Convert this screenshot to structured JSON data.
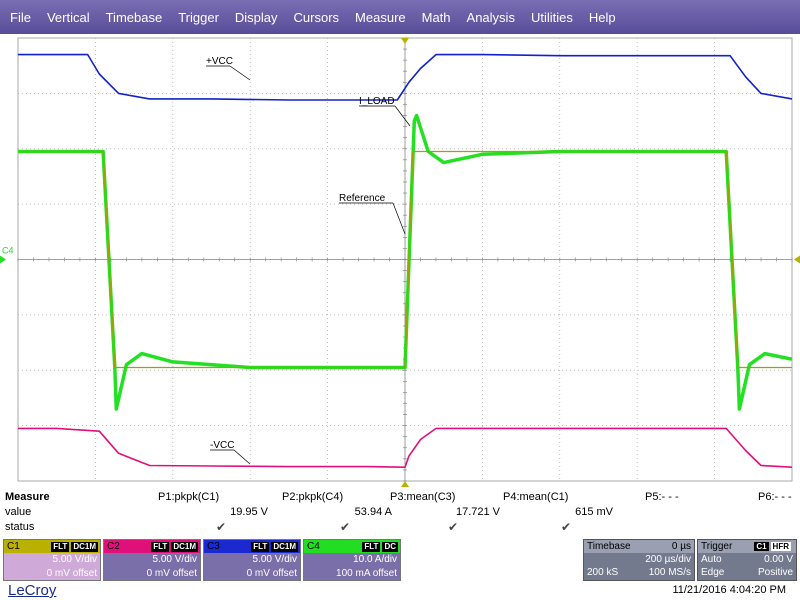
{
  "menu": [
    "File",
    "Vertical",
    "Timebase",
    "Trigger",
    "Display",
    "Cursors",
    "Measure",
    "Math",
    "Analysis",
    "Utilities",
    "Help"
  ],
  "colors": {
    "c1": "#a0a000",
    "c2": "#e0107a",
    "c3": "#1222c8",
    "c4": "#22e022",
    "grid": "#aaaaaa",
    "menu": "#6a60a8"
  },
  "traces": {
    "vcc_pos": {
      "label": "+VCC",
      "x": [
        0,
        0.05,
        0.09,
        0.105,
        0.13,
        0.17,
        0.25,
        0.35,
        0.45,
        0.49,
        0.505,
        0.52,
        0.54,
        0.6,
        0.7,
        0.8,
        0.9,
        0.92,
        0.94,
        0.96,
        1.0
      ],
      "y": [
        3.7,
        3.7,
        3.7,
        3.35,
        3.0,
        2.9,
        2.9,
        2.88,
        2.88,
        2.88,
        3.2,
        3.45,
        3.7,
        3.7,
        3.68,
        3.68,
        3.68,
        3.68,
        3.3,
        3.0,
        2.9
      ]
    },
    "vcc_neg": {
      "label": "-VCC",
      "x": [
        0,
        0.05,
        0.105,
        0.13,
        0.17,
        0.25,
        0.35,
        0.45,
        0.5,
        0.505,
        0.52,
        0.54,
        0.6,
        0.7,
        0.8,
        0.9,
        0.915,
        0.94,
        0.96,
        1.0
      ],
      "y": [
        -3.05,
        -3.05,
        -3.1,
        -3.5,
        -3.72,
        -3.73,
        -3.74,
        -3.74,
        -3.75,
        -3.55,
        -3.25,
        -3.05,
        -3.05,
        -3.05,
        -3.05,
        -3.05,
        -3.05,
        -3.45,
        -3.72,
        -3.75
      ]
    },
    "reference": {
      "label": "Reference",
      "x": [
        0,
        0.11,
        0.125,
        0.5,
        0.51,
        0.915,
        0.93,
        1.0
      ],
      "y": [
        1.95,
        1.95,
        -1.95,
        -1.95,
        1.95,
        1.95,
        -1.95,
        -1.95
      ]
    },
    "i_load": {
      "label": "I_LOAD",
      "x": [
        0,
        0.11,
        0.125,
        0.127,
        0.14,
        0.16,
        0.2,
        0.3,
        0.4,
        0.5,
        0.512,
        0.515,
        0.53,
        0.55,
        0.6,
        0.7,
        0.8,
        0.915,
        0.93,
        0.932,
        0.945,
        0.965,
        1.0
      ],
      "y": [
        1.95,
        1.95,
        -1.95,
        -2.7,
        -1.9,
        -1.7,
        -1.85,
        -1.95,
        -1.95,
        -1.95,
        2.5,
        2.6,
        1.95,
        1.75,
        1.9,
        1.95,
        1.95,
        1.95,
        -1.95,
        -2.7,
        -1.9,
        -1.7,
        -1.8
      ]
    }
  },
  "channel_marker": "C4",
  "measure": {
    "row_labels": [
      "Measure",
      "value",
      "status"
    ],
    "params": [
      {
        "name": "P1:pkpk(C1)",
        "value": "19.95 V",
        "status": "✔"
      },
      {
        "name": "P2:pkpk(C4)",
        "value": "53.94 A",
        "status": "✔"
      },
      {
        "name": "P3:mean(C3)",
        "value": "17.721 V",
        "status": "✔"
      },
      {
        "name": "P4:mean(C1)",
        "value": "615 mV",
        "status": "✔"
      },
      {
        "name": "P5:- - -",
        "value": "",
        "status": ""
      },
      {
        "name": "P6:- - -",
        "value": "",
        "status": ""
      }
    ]
  },
  "channels": [
    {
      "name": "C1",
      "tags": [
        "FLT",
        "DC1M"
      ],
      "scale": "5.00 V/div",
      "offset": "0 mV offset",
      "head": "#b9b000",
      "body": "#cfa9d8"
    },
    {
      "name": "C2",
      "tags": [
        "FLT",
        "DC1M"
      ],
      "scale": "5.00 V/div",
      "offset": "0 mV offset",
      "head": "#e0107a",
      "body": "#7a6fa8"
    },
    {
      "name": "C3",
      "tags": [
        "FLT",
        "DC1M"
      ],
      "scale": "5.00 V/div",
      "offset": "0 mV offset",
      "head": "#1a2ad0",
      "body": "#7a6fa8"
    },
    {
      "name": "C4",
      "tags": [
        "FLT",
        "DC"
      ],
      "scale": "10.0 A/div",
      "offset": "100 mA offset",
      "head": "#22dd22",
      "body": "#7a6fa8"
    }
  ],
  "timebase": {
    "title": "Timebase",
    "delay": "0 µs",
    "per_div": "200 µs/div",
    "samples": "200 kS",
    "rate": "100 MS/s"
  },
  "trigger": {
    "title": "Trigger",
    "tag1": "C1",
    "tag2": "HFR",
    "mode": "Auto",
    "level": "0.00 V",
    "type": "Edge",
    "slope": "Positive"
  },
  "brand": "LeCroy",
  "datetime": "11/21/2016 4:04:20 PM"
}
